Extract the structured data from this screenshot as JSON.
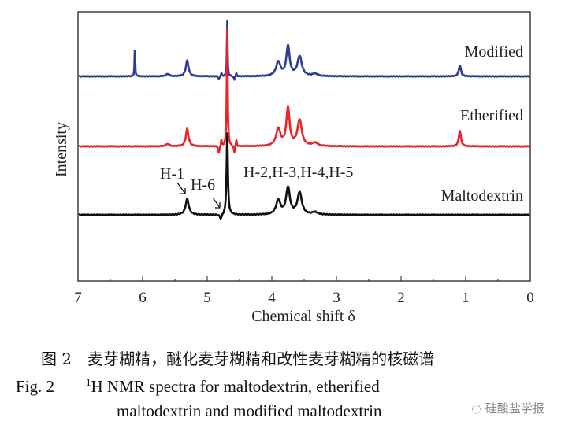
{
  "chart_data": {
    "type": "line",
    "title": "",
    "xlabel": "Chemical shift δ",
    "ylabel": "Intensity",
    "xlim": [
      7,
      0
    ],
    "ylim": [
      -84,
      258
    ],
    "xticks": [
      "7",
      "6",
      "5",
      "4",
      "3",
      "2",
      "1",
      "0"
    ],
    "series": [
      {
        "name": "Maltodextrin",
        "color": "#111111",
        "offset": 0,
        "peaks": [
          [
            5.31,
            20,
            0.03
          ],
          [
            4.69,
            104,
            0.012
          ],
          [
            3.9,
            18,
            0.04
          ],
          [
            3.75,
            34,
            0.035
          ],
          [
            3.57,
            28,
            0.04
          ],
          [
            3.33,
            3,
            0.05
          ],
          [
            4.79,
            -6,
            0.02
          ]
        ]
      },
      {
        "name": "Etherified",
        "color": "#e8262a",
        "offset": 87,
        "peaks": [
          [
            5.61,
            3,
            0.03
          ],
          [
            5.31,
            22,
            0.025
          ],
          [
            4.69,
            150,
            0.008
          ],
          [
            3.9,
            22,
            0.04
          ],
          [
            3.75,
            48,
            0.03
          ],
          [
            3.57,
            33,
            0.04
          ],
          [
            3.33,
            4,
            0.05
          ],
          [
            1.09,
            20,
            0.02
          ],
          [
            4.82,
            -10,
            0.01
          ],
          [
            4.78,
            8,
            0.008
          ],
          [
            4.58,
            -9,
            0.01
          ],
          [
            4.55,
            8,
            0.008
          ]
        ]
      },
      {
        "name": "Modified",
        "color": "#2e3c96",
        "offset": 176,
        "peaks": [
          [
            6.12,
            35,
            0.006
          ],
          [
            5.61,
            3,
            0.03
          ],
          [
            5.31,
            20,
            0.025
          ],
          [
            4.69,
            72,
            0.006
          ],
          [
            3.9,
            18,
            0.04
          ],
          [
            3.75,
            38,
            0.03
          ],
          [
            3.57,
            25,
            0.04
          ],
          [
            3.33,
            3,
            0.05
          ],
          [
            1.09,
            14,
            0.02
          ],
          [
            4.82,
            -5,
            0.01
          ],
          [
            4.78,
            4,
            0.008
          ],
          [
            4.58,
            -5,
            0.01
          ],
          [
            4.55,
            4,
            0.008
          ]
        ]
      }
    ],
    "annotations": [
      "H-1",
      "H-6",
      "H-2,H-3,H-4,H-5"
    ]
  },
  "caption": {
    "cn": "图 2　麦芽糊精，醚化麦芽糊精和改性麦芽糊精的核磁谱",
    "en_prefix": "Fig.  2",
    "en_sup": "1",
    "en_line1": "H  NMR  spectra  for  maltodextrin,  etherified",
    "en_line2": "maltodextrin and modified maltodextrin"
  },
  "watermark": "硅酸盐学报"
}
